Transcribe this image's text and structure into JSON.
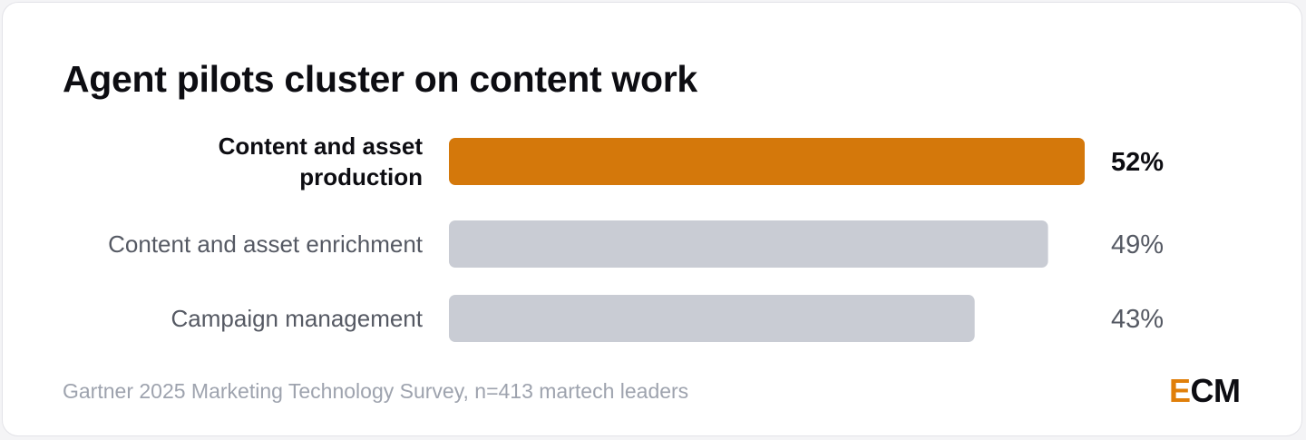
{
  "colors": {
    "highlight": "#d4780b",
    "muted": "#c9ccd4",
    "label_highlight": "#0d0d12",
    "label_muted": "#555963",
    "logo_accent": "#e07f0a"
  },
  "chart_data": {
    "type": "bar",
    "orientation": "horizontal",
    "title": "Agent pilots cluster on content work",
    "categories": [
      "Content and asset production",
      "Content and asset enrichment",
      "Campaign management"
    ],
    "values": [
      52,
      49,
      43
    ],
    "value_labels": [
      "52%",
      "49%",
      "43%"
    ],
    "highlighted_index": 0,
    "xlim": [
      0,
      52
    ],
    "grid": false,
    "legend": "none"
  },
  "footer": {
    "source": "Gartner 2025 Marketing Technology Survey, n=413 martech leaders"
  },
  "logo": {
    "accent_letter": "E",
    "rest": "CM"
  }
}
